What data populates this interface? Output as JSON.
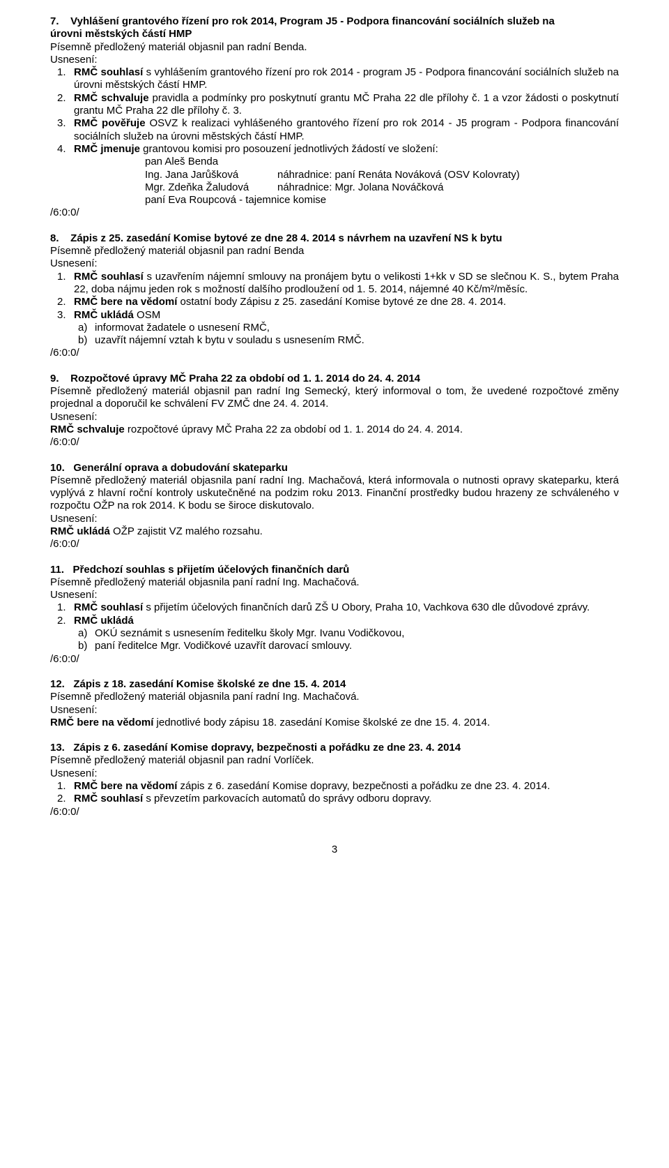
{
  "s7": {
    "heading_l1": "7.    Vyhlášení grantového řízení pro rok 2014, Program J5 - Podpora financování sociálních služeb na",
    "heading_l2": "úrovni městských částí HMP",
    "p1": "Písemně předložený materiál objasnil pan radní Benda.",
    "usn": "Usnesení:",
    "i1a": "RMČ souhlasí",
    "i1b": " s vyhlášením grantového řízení pro rok 2014 - program J5 - Podpora financování sociálních služeb na úrovni městských částí HMP.",
    "i2a": "RMČ schvaluje",
    "i2b": " pravidla a podmínky pro poskytnutí grantu MČ Praha 22 dle přílohy č. 1 a vzor žádosti o poskytnutí grantu MČ Praha 22 dle přílohy č. 3.",
    "i3a": "RMČ pověřuje",
    "i3b": " OSVZ k realizaci vyhlášeného grantového řízení pro rok 2014 - J5 program - Podpora financování sociálních služeb na úrovni městských částí HMP.",
    "i4a": "RMČ jmenuje",
    "i4b": " grantovou komisi pro posouzení jednotlivých žádostí ve složení:",
    "m1": "pan Aleš Benda",
    "m2a": "Ing. Jana Jarůšková",
    "m2b": "náhradnice: paní Renáta Nováková (OSV Kolovraty)",
    "m3a": "Mgr. Zdeňka Žaludová",
    "m3b": "náhradnice: Mgr. Jolana Nováčková",
    "m4": "paní Eva Roupcová  - tajemnice komise",
    "vote": "/6:0:0/"
  },
  "s8": {
    "heading": "8.    Zápis z 25. zasedání Komise bytové ze dne 28 4. 2014 s návrhem na uzavření NS k bytu",
    "p1": "Písemně předložený materiál objasnil pan radní Benda",
    "usn": "Usnesení:",
    "i1a": "RMČ souhlasí",
    "i1b": " s uzavřením nájemní smlouvy na pronájem bytu o velikosti 1+kk v SD se slečnou K. S., bytem Praha 22, doba nájmu jeden rok s možností dalšího prodloužení od 1. 5. 2014, nájemné 40 Kč/m²/měsíc.",
    "i2a": "RMČ bere na vědomí",
    "i2b": " ostatní body Zápisu z 25. zasedání Komise bytové ze dne  28. 4. 2014.",
    "i3a": "RMČ ukládá",
    "i3b": " OSM",
    "i3_a": "informovat žadatele o usnesení RMČ,",
    "i3_b": "uzavřít nájemní vztah k bytu v souladu s usnesením RMČ.",
    "vote": "/6:0:0/"
  },
  "s9": {
    "heading": "9.    Rozpočtové úpravy MČ Praha 22 za období od 1. 1. 2014 do 24. 4. 2014",
    "p1": "Písemně předložený materiál objasnil pan radní Ing Semecký, který informoval o tom, že uvedené rozpočtové změny projednal a doporučil ke schválení FV ZMČ dne 24. 4. 2014.",
    "usn": "Usnesení:",
    "r1a": "RMČ schvaluje",
    "r1b": " rozpočtové úpravy MČ Praha 22 za období od 1. 1. 2014 do 24. 4. 2014.",
    "vote": "/6:0:0/"
  },
  "s10": {
    "heading": "10.   Generální oprava a dobudování skateparku",
    "p1": "Písemně předložený materiál objasnila paní radní Ing. Machačová, která informovala o nutnosti opravy skateparku, která vyplývá z hlavní roční kontroly uskutečněné na podzim roku 2013. Finanční prostředky budou hrazeny ze schváleného v rozpočtu OŽP na rok 2014. K bodu se široce diskutovalo.",
    "usn": "Usnesení:",
    "r1a": "RMČ ukládá",
    "r1b": " OŽP zajistit VZ malého rozsahu.",
    "vote": "/6:0:0/"
  },
  "s11": {
    "heading": "11.   Předchozí souhlas s přijetím účelových finančních darů",
    "p1": "Písemně předložený materiál objasnila paní radní Ing. Machačová.",
    "usn": "Usnesení:",
    "i1a": "RMČ souhlasí",
    "i1b": " s přijetím účelových finančních darů ZŠ U Obory, Praha 10, Vachkova 630 dle důvodové zprávy.",
    "i2a": "RMČ ukládá",
    "i2_a": "OKÚ seznámit s usnesením ředitelku školy Mgr. Ivanu Vodičkovou,",
    "i2_b": "paní ředitelce Mgr. Vodičkové uzavřít darovací smlouvy.",
    "vote": "/6:0:0/"
  },
  "s12": {
    "heading": "12.   Zápis z 18. zasedání Komise školské ze dne 15. 4. 2014",
    "p1": "Písemně předložený materiál objasnila paní radní Ing. Machačová.",
    "usn": "Usnesení:",
    "r1a": "RMČ bere na vědomí",
    "r1b": " jednotlivé body zápisu 18. zasedání Komise školské ze dne 15. 4. 2014."
  },
  "s13": {
    "heading": "13.   Zápis z 6. zasedání Komise dopravy, bezpečnosti a pořádku ze dne 23. 4. 2014",
    "p1": "Písemně předložený materiál objasnil pan radní Vorlíček.",
    "usn": "Usnesení:",
    "i1a": "RMČ bere na vědomí",
    "i1b": " zápis z 6. zasedání Komise dopravy, bezpečnosti a pořádku ze dne 23. 4. 2014.",
    "i2a": "RMČ souhlasí",
    "i2b": " s převzetím parkovacích automatů do správy odboru dopravy.",
    "vote": "/6:0:0/"
  },
  "pagenum": "3"
}
